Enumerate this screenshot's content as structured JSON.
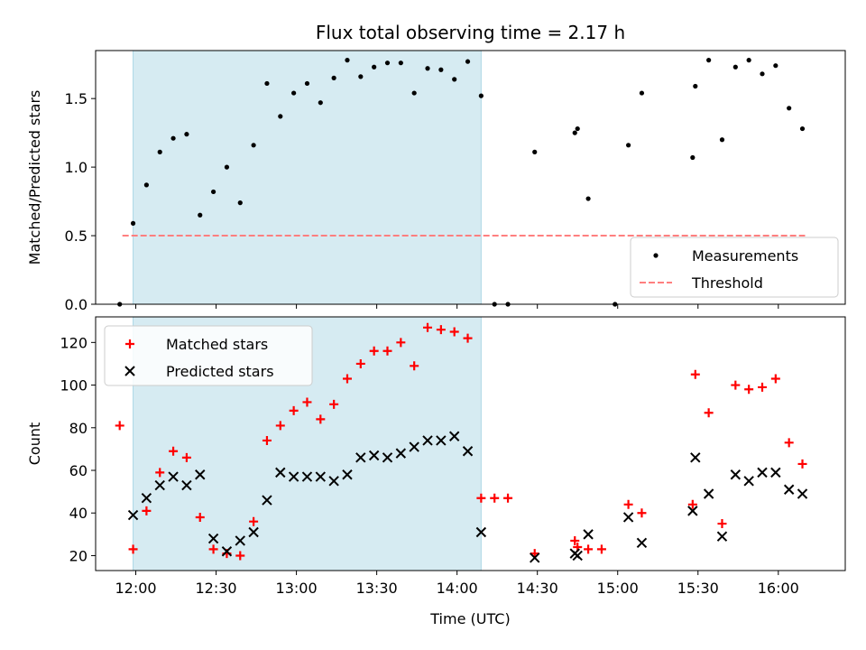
{
  "chart_data": [
    {
      "type": "scatter",
      "title": "Flux total observing time = 2.17 h",
      "xlabel": "",
      "ylabel": "Matched/Predicted stars",
      "x_type": "time",
      "xlim": [
        "11:45",
        "16:25"
      ],
      "ylim": [
        0,
        1.85
      ],
      "y_ticks": [
        "0.0",
        "0.5",
        "1.0",
        "1.5"
      ],
      "shaded_span": [
        "11:59",
        "14:09"
      ],
      "shaded_color": "#add8e6",
      "legend_position": "lower-right",
      "legend": [
        {
          "label": "Measurements",
          "marker": "dot"
        },
        {
          "label": "Threshold",
          "marker": "dashed-line"
        }
      ],
      "threshold": {
        "value": 0.5,
        "x_range": [
          "11:55",
          "16:10"
        ],
        "color": "#ff7f7f"
      },
      "series": [
        {
          "name": "Measurements",
          "color": "#000000",
          "x": [
            "11:54",
            "11:59",
            "12:04",
            "12:09",
            "12:14",
            "12:19",
            "12:24",
            "12:29",
            "12:34",
            "12:39",
            "12:44",
            "12:49",
            "12:54",
            "12:59",
            "13:04",
            "13:09",
            "13:14",
            "13:19",
            "13:24",
            "13:29",
            "13:34",
            "13:39",
            "13:44",
            "13:49",
            "13:54",
            "13:59",
            "14:04",
            "14:09",
            "14:14",
            "14:19",
            "14:24",
            "14:29",
            "14:34",
            "14:39",
            "14:44",
            "14:45",
            "14:49",
            "14:54",
            "14:59",
            "15:04",
            "15:09",
            "15:14",
            "15:19",
            "15:24",
            "15:28",
            "15:29",
            "15:34",
            "15:39",
            "15:44",
            "15:49",
            "15:54",
            "15:59",
            "16:04",
            "16:09"
          ],
          "y": [
            0.0,
            0.59,
            0.87,
            1.11,
            1.21,
            1.24,
            0.65,
            0.82,
            1.0,
            0.74,
            1.16,
            1.61,
            1.37,
            1.54,
            1.61,
            1.47,
            1.65,
            1.78,
            1.66,
            1.73,
            1.76,
            1.76,
            1.54,
            1.72,
            1.71,
            1.64,
            1.77,
            1.52,
            0.0,
            0.0,
            null,
            1.11,
            null,
            null,
            1.25,
            1.28,
            0.77,
            null,
            0.0,
            1.16,
            1.54,
            null,
            null,
            null,
            1.07,
            1.59,
            1.78,
            1.2,
            1.73,
            1.78,
            1.68,
            1.74,
            1.43,
            1.28
          ]
        }
      ]
    },
    {
      "type": "scatter",
      "title": "",
      "xlabel": "Time (UTC)",
      "ylabel": "Count",
      "x_type": "time",
      "xlim": [
        "11:45",
        "16:25"
      ],
      "x_ticks": [
        "12:00",
        "12:30",
        "13:00",
        "13:30",
        "14:00",
        "14:30",
        "15:00",
        "15:30",
        "16:00"
      ],
      "ylim": [
        13,
        132
      ],
      "y_ticks": [
        "20",
        "40",
        "60",
        "80",
        "100",
        "120"
      ],
      "shaded_span": [
        "11:59",
        "14:09"
      ],
      "shaded_color": "#add8e6",
      "legend_position": "top-left",
      "legend": [
        {
          "label": "Matched stars",
          "marker": "plus"
        },
        {
          "label": "Predicted stars",
          "marker": "x"
        }
      ],
      "series": [
        {
          "name": "Matched stars",
          "color": "#ff0000",
          "marker": "plus",
          "x": [
            "11:54",
            "11:59",
            "12:04",
            "12:09",
            "12:14",
            "12:19",
            "12:24",
            "12:29",
            "12:34",
            "12:39",
            "12:44",
            "12:49",
            "12:54",
            "12:59",
            "13:04",
            "13:09",
            "13:14",
            "13:19",
            "13:24",
            "13:29",
            "13:34",
            "13:39",
            "13:44",
            "13:49",
            "13:54",
            "13:59",
            "14:04",
            "14:09",
            "14:14",
            "14:19",
            "14:29",
            "14:44",
            "14:45",
            "14:49",
            "14:54",
            "15:04",
            "15:09",
            "15:28",
            "15:29",
            "15:34",
            "15:39",
            "15:44",
            "15:49",
            "15:54",
            "15:59",
            "16:04",
            "16:09"
          ],
          "y": [
            81,
            23,
            41,
            59,
            69,
            66,
            38,
            23,
            21,
            20,
            36,
            74,
            81,
            88,
            92,
            84,
            91,
            103,
            110,
            116,
            116,
            120,
            109,
            127,
            126,
            125,
            122,
            47,
            47,
            47,
            21,
            27,
            24,
            23,
            23,
            44,
            40,
            44,
            105,
            87,
            35,
            100,
            98,
            99,
            103,
            73,
            63
          ]
        },
        {
          "name": "Predicted stars",
          "color": "#000000",
          "marker": "x",
          "x": [
            "11:59",
            "12:04",
            "12:09",
            "12:14",
            "12:19",
            "12:24",
            "12:29",
            "12:34",
            "12:39",
            "12:44",
            "12:49",
            "12:54",
            "12:59",
            "13:04",
            "13:09",
            "13:14",
            "13:19",
            "13:24",
            "13:29",
            "13:34",
            "13:39",
            "13:44",
            "13:49",
            "13:54",
            "13:59",
            "14:04",
            "14:09",
            "14:29",
            "14:44",
            "14:45",
            "14:49",
            "15:04",
            "15:09",
            "15:28",
            "15:29",
            "15:34",
            "15:39",
            "15:44",
            "15:49",
            "15:54",
            "15:59",
            "16:04",
            "16:09"
          ],
          "y": [
            39,
            47,
            53,
            57,
            53,
            58,
            28,
            22,
            27,
            31,
            46,
            59,
            57,
            57,
            57,
            55,
            58,
            66,
            67,
            66,
            68,
            71,
            74,
            74,
            76,
            69,
            31,
            19,
            21,
            20,
            30,
            38,
            26,
            41,
            66,
            49,
            29,
            58,
            55,
            59,
            59,
            51,
            49
          ]
        }
      ]
    }
  ]
}
